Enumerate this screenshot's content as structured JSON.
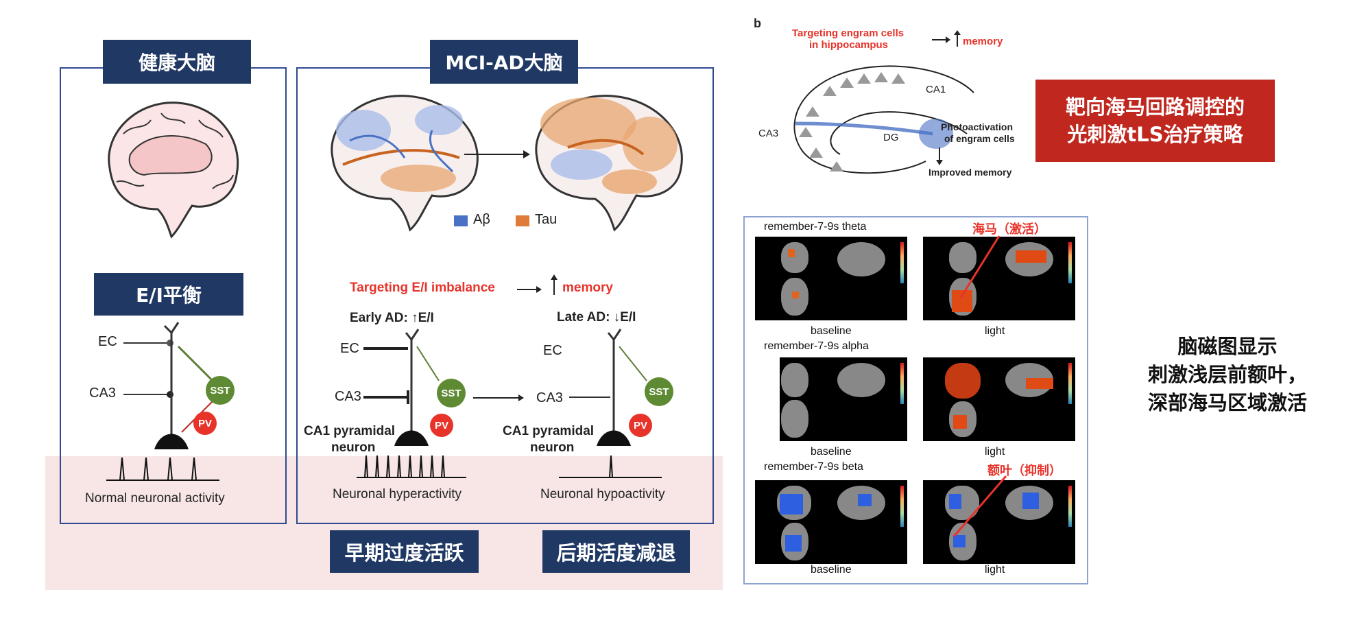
{
  "left": {
    "healthy_title": "健康大脑",
    "mci_title": "MCI-AD大脑",
    "ei_title": "E/I平衡",
    "legend_abeta": "Aβ",
    "legend_tau": "Tau",
    "targeting_text": "Targeting E/I imbalance",
    "memory_text": "memory",
    "early_ad": "Early AD: ↑E/I",
    "late_ad": "Late AD: ↓E/I",
    "ec": "EC",
    "ca3": "CA3",
    "sst": "SST",
    "pv": "PV",
    "ca1_line1": "CA1 pyramidal",
    "ca1_line2": "neuron",
    "normal_activity": "Normal neuronal activity",
    "hyper_activity": "Neuronal hyperactivity",
    "hypo_activity": "Neuronal hypoactivity",
    "early_label": "早期过度活跃",
    "late_label": "后期活度减退"
  },
  "hippo": {
    "panel_letter": "b",
    "targeting_line1": "Targeting engram cells",
    "targeting_line2": "in hippocampus",
    "memory": "memory",
    "ca1": "CA1",
    "ca3": "CA3",
    "dg": "DG",
    "photo_line1": "Photoactivation",
    "photo_line2": "of engram cells",
    "improved": "Improved memory"
  },
  "red_box": {
    "line1": "靶向海马回路调控的",
    "line2": "光刺激tLS治疗策略"
  },
  "fmri": {
    "row1_title": "remember-7-9s theta",
    "row2_title": "remember-7-9s alpha",
    "row3_title": "remember-7-9s beta",
    "baseline": "baseline",
    "light": "light",
    "hippo_annot": "海马（激活）",
    "frontal_annot": "额叶（抑制）"
  },
  "right_text": {
    "line1": "脑磁图显示",
    "line2": "刺激浅层前额叶，",
    "line3": "深部海马区域激活"
  },
  "colors": {
    "navy": "#1f3864",
    "red_box": "#c0281f",
    "pink_bg": "#f8e6e6",
    "abeta": "#4a72c4",
    "tau": "#e07b39"
  }
}
